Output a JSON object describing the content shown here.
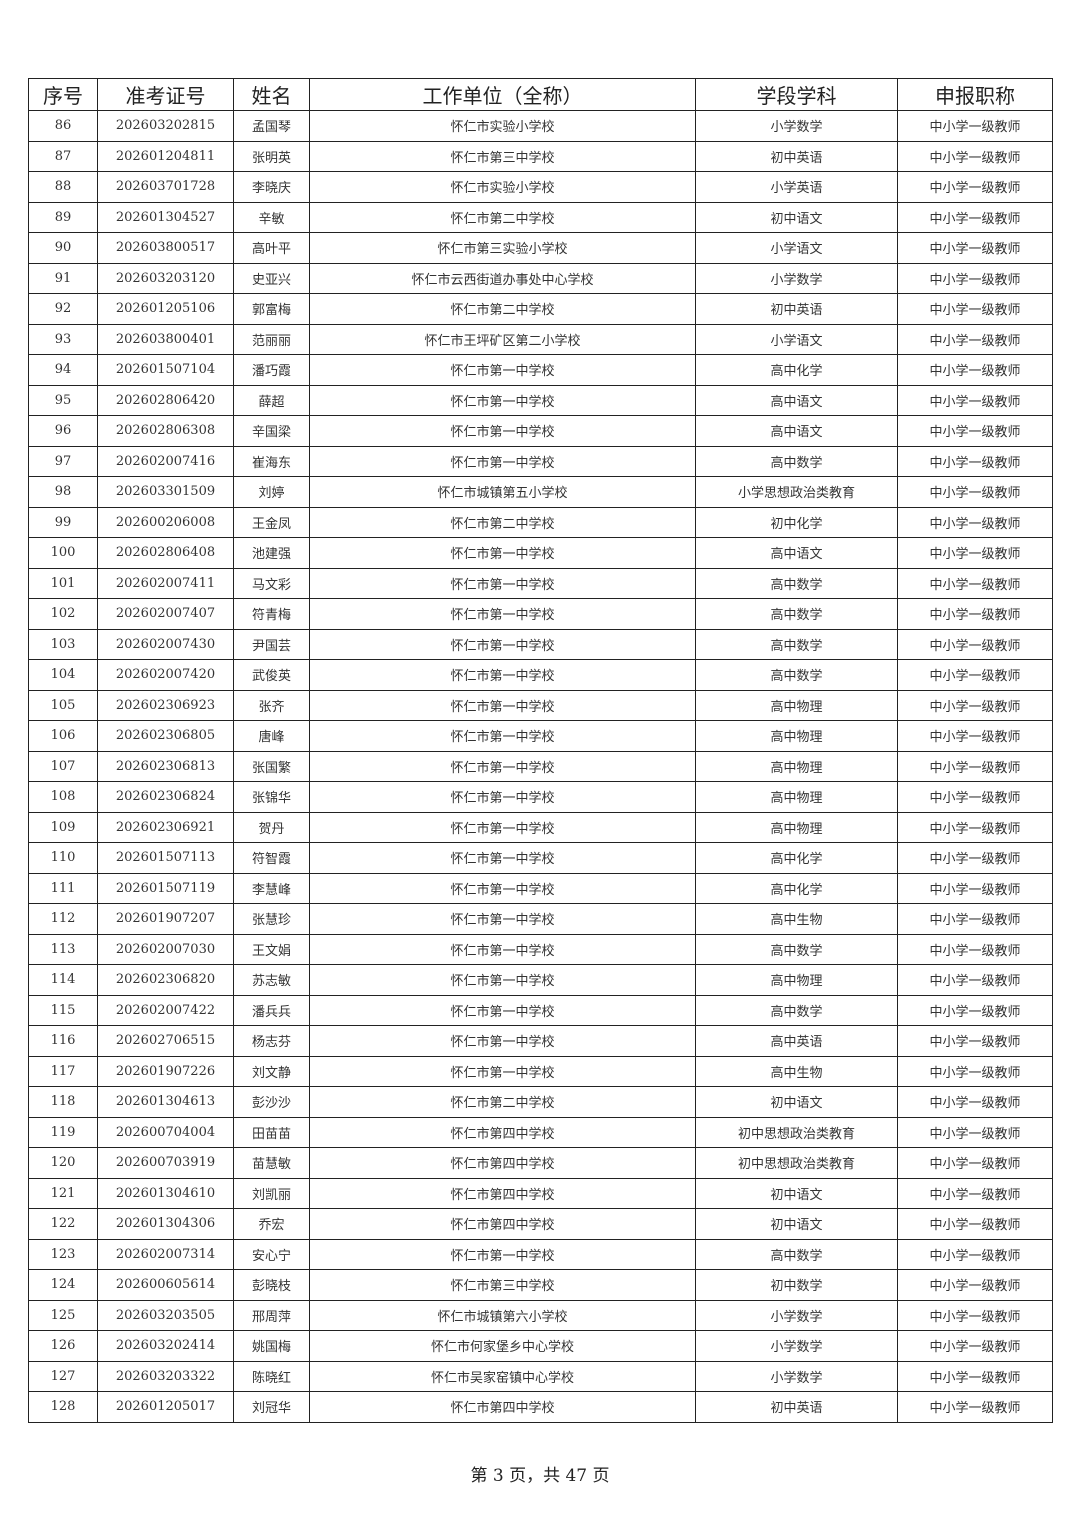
{
  "table": {
    "headers": [
      "序号",
      "准考证号",
      "姓名",
      "工作单位（全称）",
      "学段学科",
      "申报职称"
    ],
    "rows": [
      [
        "86",
        "202603202815",
        "孟国琴",
        "怀仁市实验小学校",
        "小学数学",
        "中小学一级教师"
      ],
      [
        "87",
        "202601204811",
        "张明英",
        "怀仁市第三中学校",
        "初中英语",
        "中小学一级教师"
      ],
      [
        "88",
        "202603701728",
        "李晓庆",
        "怀仁市实验小学校",
        "小学英语",
        "中小学一级教师"
      ],
      [
        "89",
        "202601304527",
        "辛敏",
        "怀仁市第二中学校",
        "初中语文",
        "中小学一级教师"
      ],
      [
        "90",
        "202603800517",
        "高叶平",
        "怀仁市第三实验小学校",
        "小学语文",
        "中小学一级教师"
      ],
      [
        "91",
        "202603203120",
        "史亚兴",
        "怀仁市云西街道办事处中心学校",
        "小学数学",
        "中小学一级教师"
      ],
      [
        "92",
        "202601205106",
        "郭富梅",
        "怀仁市第二中学校",
        "初中英语",
        "中小学一级教师"
      ],
      [
        "93",
        "202603800401",
        "范丽丽",
        "怀仁市王坪矿区第二小学校",
        "小学语文",
        "中小学一级教师"
      ],
      [
        "94",
        "202601507104",
        "潘巧霞",
        "怀仁市第一中学校",
        "高中化学",
        "中小学一级教师"
      ],
      [
        "95",
        "202602806420",
        "薛超",
        "怀仁市第一中学校",
        "高中语文",
        "中小学一级教师"
      ],
      [
        "96",
        "202602806308",
        "辛国梁",
        "怀仁市第一中学校",
        "高中语文",
        "中小学一级教师"
      ],
      [
        "97",
        "202602007416",
        "崔海东",
        "怀仁市第一中学校",
        "高中数学",
        "中小学一级教师"
      ],
      [
        "98",
        "202603301509",
        "刘婷",
        "怀仁市城镇第五小学校",
        "小学思想政治类教育",
        "中小学一级教师"
      ],
      [
        "99",
        "202600206008",
        "王金凤",
        "怀仁市第二中学校",
        "初中化学",
        "中小学一级教师"
      ],
      [
        "100",
        "202602806408",
        "池建强",
        "怀仁市第一中学校",
        "高中语文",
        "中小学一级教师"
      ],
      [
        "101",
        "202602007411",
        "马文彩",
        "怀仁市第一中学校",
        "高中数学",
        "中小学一级教师"
      ],
      [
        "102",
        "202602007407",
        "符青梅",
        "怀仁市第一中学校",
        "高中数学",
        "中小学一级教师"
      ],
      [
        "103",
        "202602007430",
        "尹国芸",
        "怀仁市第一中学校",
        "高中数学",
        "中小学一级教师"
      ],
      [
        "104",
        "202602007420",
        "武俊英",
        "怀仁市第一中学校",
        "高中数学",
        "中小学一级教师"
      ],
      [
        "105",
        "202602306923",
        "张齐",
        "怀仁市第一中学校",
        "高中物理",
        "中小学一级教师"
      ],
      [
        "106",
        "202602306805",
        "唐峰",
        "怀仁市第一中学校",
        "高中物理",
        "中小学一级教师"
      ],
      [
        "107",
        "202602306813",
        "张国繁",
        "怀仁市第一中学校",
        "高中物理",
        "中小学一级教师"
      ],
      [
        "108",
        "202602306824",
        "张锦华",
        "怀仁市第一中学校",
        "高中物理",
        "中小学一级教师"
      ],
      [
        "109",
        "202602306921",
        "贺丹",
        "怀仁市第一中学校",
        "高中物理",
        "中小学一级教师"
      ],
      [
        "110",
        "202601507113",
        "符智霞",
        "怀仁市第一中学校",
        "高中化学",
        "中小学一级教师"
      ],
      [
        "111",
        "202601507119",
        "李慧峰",
        "怀仁市第一中学校",
        "高中化学",
        "中小学一级教师"
      ],
      [
        "112",
        "202601907207",
        "张慧珍",
        "怀仁市第一中学校",
        "高中生物",
        "中小学一级教师"
      ],
      [
        "113",
        "202602007030",
        "王文娟",
        "怀仁市第一中学校",
        "高中数学",
        "中小学一级教师"
      ],
      [
        "114",
        "202602306820",
        "苏志敏",
        "怀仁市第一中学校",
        "高中物理",
        "中小学一级教师"
      ],
      [
        "115",
        "202602007422",
        "潘兵兵",
        "怀仁市第一中学校",
        "高中数学",
        "中小学一级教师"
      ],
      [
        "116",
        "202602706515",
        "杨志芬",
        "怀仁市第一中学校",
        "高中英语",
        "中小学一级教师"
      ],
      [
        "117",
        "202601907226",
        "刘文静",
        "怀仁市第一中学校",
        "高中生物",
        "中小学一级教师"
      ],
      [
        "118",
        "202601304613",
        "彭沙沙",
        "怀仁市第二中学校",
        "初中语文",
        "中小学一级教师"
      ],
      [
        "119",
        "202600704004",
        "田苗苗",
        "怀仁市第四中学校",
        "初中思想政治类教育",
        "中小学一级教师"
      ],
      [
        "120",
        "202600703919",
        "苗慧敏",
        "怀仁市第四中学校",
        "初中思想政治类教育",
        "中小学一级教师"
      ],
      [
        "121",
        "202601304610",
        "刘凯丽",
        "怀仁市第四中学校",
        "初中语文",
        "中小学一级教师"
      ],
      [
        "122",
        "202601304306",
        "乔宏",
        "怀仁市第四中学校",
        "初中语文",
        "中小学一级教师"
      ],
      [
        "123",
        "202602007314",
        "安心宁",
        "怀仁市第一中学校",
        "高中数学",
        "中小学一级教师"
      ],
      [
        "124",
        "202600605614",
        "彭晓枝",
        "怀仁市第三中学校",
        "初中数学",
        "中小学一级教师"
      ],
      [
        "125",
        "202603203505",
        "邢周萍",
        "怀仁市城镇第六小学校",
        "小学数学",
        "中小学一级教师"
      ],
      [
        "126",
        "202603202414",
        "姚国梅",
        "怀仁市何家堡乡中心学校",
        "小学数学",
        "中小学一级教师"
      ],
      [
        "127",
        "202603203322",
        "陈晓红",
        "怀仁市吴家窑镇中心学校",
        "小学数学",
        "中小学一级教师"
      ],
      [
        "128",
        "202601205017",
        "刘冠华",
        "怀仁市第四中学校",
        "初中英语",
        "中小学一级教师"
      ]
    ]
  },
  "footer": {
    "page_label": "第 3 页，共 47 页"
  }
}
